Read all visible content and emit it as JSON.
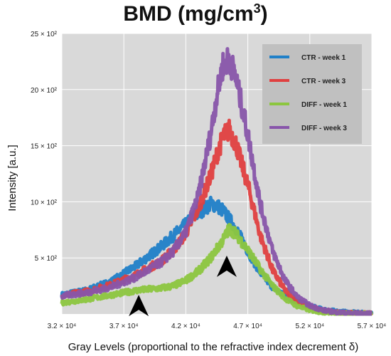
{
  "chart_data": {
    "type": "line",
    "title": "BMD (mg/cm",
    "title_sup": "3",
    "title_end": ")",
    "xlabel": "Gray Levels (proportional to the refractive index decrement δ)",
    "ylabel": "Intensity [a.u.]",
    "xlim": [
      32000,
      57000
    ],
    "ylim": [
      0,
      2500
    ],
    "grid": true,
    "legend_position": "top-right",
    "x_ticks": [
      32000,
      37000,
      42000,
      47000,
      52000,
      57000
    ],
    "x_tick_labels": [
      "3.2 × 10⁴",
      "3.7 × 10⁴",
      "4.2 × 10⁴",
      "4.7 × 10⁴",
      "5.2 × 10⁴",
      "5.7 × 10⁴"
    ],
    "y_ticks": [
      500,
      1000,
      1500,
      2000,
      2500
    ],
    "y_tick_labels": [
      "5 × 10²",
      "10 × 10²",
      "15 × 10²",
      "20 × 10²",
      "25 × 10²"
    ],
    "colors": {
      "plot_bg": "#d9d9d9",
      "grid": "#ffffff",
      "legend_bg": "#c0c0c0"
    },
    "series": [
      {
        "name": "CTR - week 1",
        "color": "#2080c8",
        "x": [
          32000,
          34000,
          36000,
          38000,
          40000,
          41000,
          42000,
          43000,
          44000,
          44500,
          45000,
          46000,
          47000,
          48000,
          49000,
          50000,
          51000,
          52000,
          53000,
          54000,
          55000,
          56000,
          57000
        ],
        "y": [
          170,
          210,
          290,
          430,
          600,
          700,
          800,
          900,
          980,
          970,
          920,
          770,
          560,
          370,
          240,
          160,
          110,
          70,
          40,
          25,
          15,
          10,
          5
        ]
      },
      {
        "name": "CTR - week 3",
        "color": "#e04040",
        "x": [
          32000,
          34000,
          36000,
          38000,
          40000,
          41000,
          42000,
          43000,
          44000,
          44500,
          45000,
          45500,
          46000,
          47000,
          48000,
          49000,
          50000,
          51000,
          52000,
          53000,
          54000,
          55000,
          56000,
          57000
        ],
        "y": [
          165,
          200,
          260,
          350,
          470,
          570,
          720,
          940,
          1230,
          1420,
          1580,
          1640,
          1530,
          1150,
          700,
          390,
          210,
          110,
          60,
          30,
          15,
          8,
          5,
          3
        ]
      },
      {
        "name": "DIFF - week 1",
        "color": "#8cc63f",
        "x": [
          32000,
          34000,
          36000,
          38000,
          39000,
          40000,
          41000,
          42000,
          43000,
          44000,
          45000,
          45500,
          46000,
          47000,
          48000,
          49000,
          50000,
          51000,
          52000,
          53000,
          54000,
          55000,
          56000,
          57000
        ],
        "y": [
          100,
          130,
          170,
          210,
          220,
          230,
          250,
          300,
          380,
          500,
          660,
          760,
          720,
          570,
          400,
          250,
          140,
          70,
          35,
          15,
          8,
          5,
          3,
          2
        ]
      },
      {
        "name": "DIFF - week 3",
        "color": "#8855aa",
        "x": [
          32000,
          34000,
          36000,
          38000,
          40000,
          41000,
          42000,
          43000,
          44000,
          44500,
          45000,
          45500,
          46000,
          47000,
          48000,
          49000,
          50000,
          51000,
          52000,
          53000,
          54000,
          55000,
          56000,
          57000
        ],
        "y": [
          160,
          190,
          240,
          330,
          460,
          560,
          730,
          1050,
          1600,
          1950,
          2220,
          2270,
          2120,
          1600,
          980,
          560,
          300,
          150,
          75,
          35,
          18,
          8,
          5,
          3
        ]
      }
    ],
    "annotations": [
      {
        "type": "arrowhead",
        "x": 38200,
        "y": -20,
        "direction": "up"
      },
      {
        "type": "arrowhead",
        "x": 45300,
        "y": 330,
        "direction": "up"
      }
    ]
  }
}
